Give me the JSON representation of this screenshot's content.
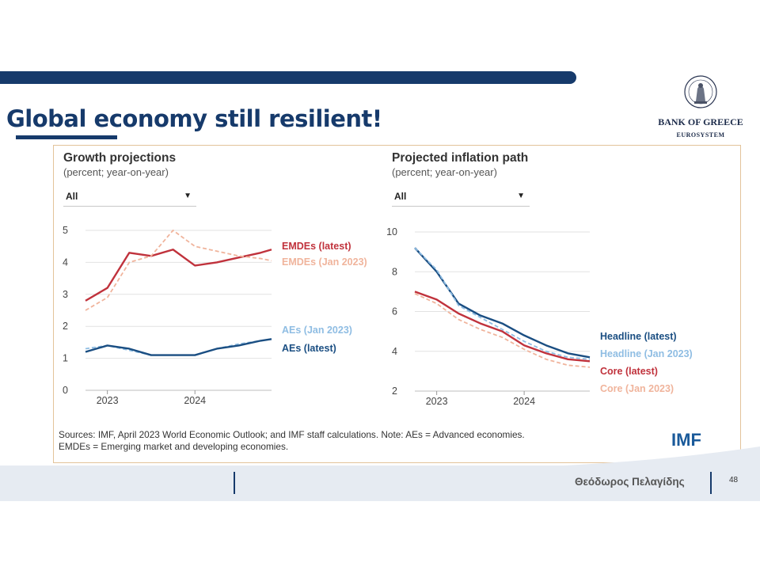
{
  "slide": {
    "title": "Global economy still resilient!",
    "logo_name": "BANK OF GREECE",
    "logo_sub": "EUROSYSTEM",
    "author": "Θεόδωρος Πελαγίδης",
    "page_number": "48"
  },
  "source": {
    "line1": "Sources: IMF, April 2023 World Economic Outlook; and IMF staff calculations. Note: AEs = Advanced economies.",
    "line2": "EMDEs = Emerging market and developing economies.",
    "brand": "IMF"
  },
  "colors": {
    "brand": "#163a6b",
    "emdes_latest": "#c0323c",
    "emdes_jan": "#f0b49c",
    "aes_latest": "#1a4e82",
    "aes_jan": "#8fbde3",
    "frame": "#e3c39a"
  },
  "chart_data": [
    {
      "type": "line",
      "title": "Growth projections",
      "subtitle": "(percent; year-on-year)",
      "filter": "All",
      "ylim": [
        0,
        5
      ],
      "yticks": [
        0,
        1,
        2,
        3,
        4,
        5
      ],
      "xlim": [
        2022.75,
        2024.875
      ],
      "xticks": [
        {
          "value": 2023,
          "label": "2023"
        },
        {
          "value": 2024,
          "label": "2024"
        }
      ],
      "grid": true,
      "legend": "labels at line ends",
      "series": [
        {
          "name": "EMDEs (latest)",
          "color": "#c0323c",
          "dashed": false,
          "x": [
            2022.75,
            2023.0,
            2023.25,
            2023.5,
            2023.75,
            2024.0,
            2024.25,
            2024.5,
            2024.75,
            2024.875
          ],
          "y": [
            2.8,
            3.2,
            4.3,
            4.2,
            4.4,
            3.9,
            4.0,
            4.15,
            4.3,
            4.4
          ]
        },
        {
          "name": "EMDEs (Jan 2023)",
          "color": "#f0b49c",
          "dashed": true,
          "x": [
            2022.75,
            2023.0,
            2023.25,
            2023.5,
            2023.75,
            2024.0,
            2024.25,
            2024.5,
            2024.75,
            2024.875
          ],
          "y": [
            2.5,
            2.9,
            4.0,
            4.2,
            5.0,
            4.5,
            4.35,
            4.2,
            4.12,
            4.05
          ]
        },
        {
          "name": "AEs (Jan 2023)",
          "color": "#8fbde3",
          "dashed": true,
          "x": [
            2022.75,
            2023.0,
            2023.25,
            2023.5,
            2023.75,
            2024.0,
            2024.25,
            2024.5,
            2024.75,
            2024.875
          ],
          "y": [
            1.3,
            1.4,
            1.25,
            1.1,
            1.1,
            1.1,
            1.3,
            1.45,
            1.55,
            1.6
          ]
        },
        {
          "name": "AEs (latest)",
          "color": "#1a4e82",
          "dashed": false,
          "x": [
            2022.75,
            2023.0,
            2023.25,
            2023.5,
            2023.75,
            2024.0,
            2024.25,
            2024.5,
            2024.75,
            2024.875
          ],
          "y": [
            1.2,
            1.4,
            1.3,
            1.1,
            1.1,
            1.1,
            1.3,
            1.4,
            1.55,
            1.6
          ]
        }
      ]
    },
    {
      "type": "line",
      "title": "Projected inflation path",
      "subtitle": "(percent; year-on-year)",
      "filter": "All",
      "ylim": [
        2,
        10
      ],
      "yticks": [
        2,
        4,
        6,
        8,
        10
      ],
      "xlim": [
        2022.75,
        2024.75
      ],
      "xticks": [
        {
          "value": 2023,
          "label": "2023"
        },
        {
          "value": 2024,
          "label": "2024"
        }
      ],
      "grid": true,
      "legend": "labels at line ends",
      "series": [
        {
          "name": "Headline (latest)",
          "color": "#1a4e82",
          "dashed": false,
          "x": [
            2022.75,
            2023.0,
            2023.25,
            2023.5,
            2023.75,
            2024.0,
            2024.25,
            2024.5,
            2024.75
          ],
          "y": [
            9.2,
            8.0,
            6.4,
            5.8,
            5.4,
            4.8,
            4.3,
            3.9,
            3.7
          ]
        },
        {
          "name": "Headline (Jan 2023)",
          "color": "#8fbde3",
          "dashed": true,
          "x": [
            2022.75,
            2023.0,
            2023.25,
            2023.5,
            2023.75,
            2024.0,
            2024.25,
            2024.5,
            2024.75
          ],
          "y": [
            9.2,
            8.1,
            6.3,
            5.7,
            5.1,
            4.5,
            4.0,
            3.7,
            3.6
          ]
        },
        {
          "name": "Core (latest)",
          "color": "#c0323c",
          "dashed": false,
          "x": [
            2022.75,
            2023.0,
            2023.25,
            2023.5,
            2023.75,
            2024.0,
            2024.25,
            2024.5,
            2024.75
          ],
          "y": [
            7.0,
            6.6,
            5.9,
            5.4,
            5.0,
            4.3,
            3.9,
            3.6,
            3.5
          ]
        },
        {
          "name": "Core (Jan 2023)",
          "color": "#f0b49c",
          "dashed": true,
          "x": [
            2022.75,
            2023.0,
            2023.25,
            2023.5,
            2023.75,
            2024.0,
            2024.25,
            2024.5,
            2024.75
          ],
          "y": [
            6.9,
            6.4,
            5.6,
            5.1,
            4.7,
            4.1,
            3.6,
            3.3,
            3.2
          ]
        }
      ]
    }
  ]
}
